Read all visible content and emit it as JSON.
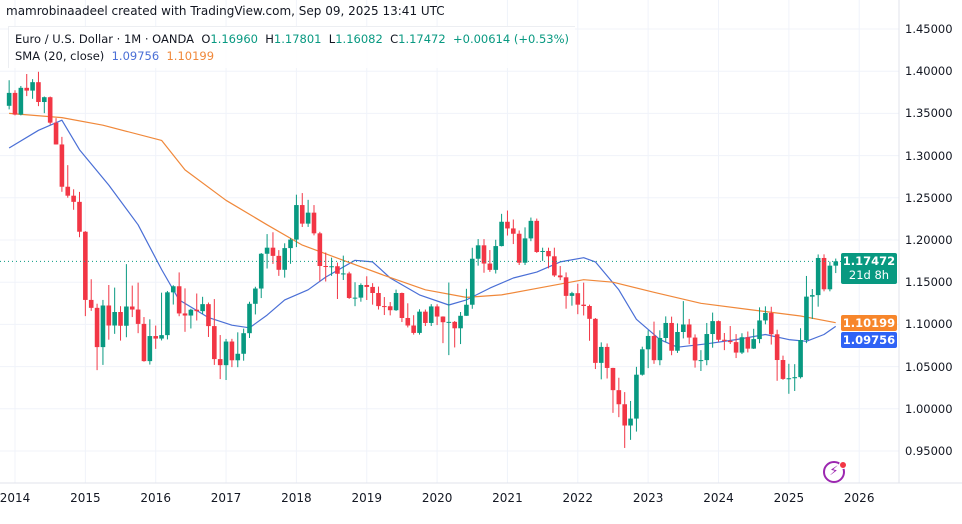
{
  "attribution": "mamrobinaadeel created with TradingView.com, Sep 09, 2025 13:41 UTC",
  "legend": {
    "symbol": "Euro / U.S. Dollar · 1M · OANDA",
    "o_label": "O",
    "o_value": "1.16960",
    "h_label": "H",
    "h_value": "1.17801",
    "l_label": "L",
    "l_value": "1.16082",
    "c_label": "C",
    "c_value": "1.17472",
    "change": "+0.00614 (+0.53%)",
    "sma_label": "SMA (20, close)",
    "sma_value_1": "1.09756",
    "sma_value_2": "1.10199"
  },
  "price_labels": {
    "current": "1.17472",
    "countdown": "21d 8h",
    "sma_orange": "1.10199",
    "sma_blue": "1.09756"
  },
  "colors": {
    "up": "#089981",
    "down": "#f23645",
    "sma_blue": "#4a6fd6",
    "sma_orange": "#f0883a",
    "current_label": "#089981",
    "orange_label": "#f7862b",
    "blue_label": "#2f62f5",
    "grid": "#f0f3fa"
  },
  "icons": {
    "bottom_right": "lightning-bolt-icon"
  },
  "chart_data": {
    "type": "candlestick",
    "interval": "1M",
    "ylim": [
      0.92,
      1.46
    ],
    "grid": true,
    "y_ticks": [
      "1.45000",
      "1.40000",
      "1.35000",
      "1.30000",
      "1.25000",
      "1.20000",
      "1.15000",
      "1.10000",
      "1.05000",
      "1.00000",
      "0.95000"
    ],
    "x_ticks": [
      "2014",
      "2015",
      "2016",
      "2017",
      "2018",
      "2019",
      "2020",
      "2021",
      "2022",
      "2023",
      "2024",
      "2025",
      "2026"
    ],
    "current_price": 1.17472,
    "candles": [
      [
        "2013-12",
        1.359,
        1.3893,
        1.3548,
        1.3743
      ],
      [
        "2014-01",
        1.3743,
        1.3775,
        1.3477,
        1.3486
      ],
      [
        "2014-02",
        1.3486,
        1.3825,
        1.3476,
        1.3803
      ],
      [
        "2014-03",
        1.3803,
        1.3967,
        1.3705,
        1.377
      ],
      [
        "2014-04",
        1.377,
        1.3906,
        1.3673,
        1.387
      ],
      [
        "2014-05",
        1.387,
        1.3993,
        1.3586,
        1.3635
      ],
      [
        "2014-06",
        1.3635,
        1.37,
        1.3503,
        1.3692
      ],
      [
        "2014-07",
        1.3692,
        1.37,
        1.3368,
        1.339
      ],
      [
        "2014-08",
        1.339,
        1.3444,
        1.3131,
        1.3132
      ],
      [
        "2014-09",
        1.3132,
        1.3222,
        1.2571,
        1.2631
      ],
      [
        "2014-10",
        1.2631,
        1.2887,
        1.2501,
        1.2525
      ],
      [
        "2014-11",
        1.2525,
        1.2601,
        1.2358,
        1.2452
      ],
      [
        "2014-12",
        1.2452,
        1.257,
        1.2033,
        1.2098
      ],
      [
        "2015-01",
        1.2098,
        1.2105,
        1.1098,
        1.129
      ],
      [
        "2015-02",
        1.129,
        1.1535,
        1.116,
        1.1196
      ],
      [
        "2015-03",
        1.1196,
        1.1245,
        1.0458,
        1.0731
      ],
      [
        "2015-04",
        1.0731,
        1.129,
        1.052,
        1.1224
      ],
      [
        "2015-05",
        1.1224,
        1.1467,
        1.0819,
        1.0987
      ],
      [
        "2015-06",
        1.0987,
        1.1436,
        1.0888,
        1.1147
      ],
      [
        "2015-07",
        1.1147,
        1.1216,
        1.0808,
        1.0984
      ],
      [
        "2015-08",
        1.0984,
        1.1714,
        1.0848,
        1.1212
      ],
      [
        "2015-09",
        1.1212,
        1.146,
        1.1087,
        1.1176
      ],
      [
        "2015-10",
        1.1176,
        1.1495,
        1.0896,
        1.1006
      ],
      [
        "2015-11",
        1.1006,
        1.1087,
        1.0558,
        1.0565
      ],
      [
        "2015-12",
        1.0565,
        1.106,
        1.0524,
        1.0862
      ],
      [
        "2016-01",
        1.0862,
        1.0986,
        1.071,
        1.0832
      ],
      [
        "2016-02",
        1.0832,
        1.1376,
        1.081,
        1.0873
      ],
      [
        "2016-03",
        1.0873,
        1.1396,
        1.0822,
        1.138
      ],
      [
        "2016-04",
        1.138,
        1.1464,
        1.1235,
        1.1452
      ],
      [
        "2016-05",
        1.1452,
        1.1616,
        1.1097,
        1.113
      ],
      [
        "2016-06",
        1.113,
        1.1427,
        1.0912,
        1.1105
      ],
      [
        "2016-07",
        1.1105,
        1.1185,
        1.0952,
        1.1174
      ],
      [
        "2016-08",
        1.1174,
        1.1366,
        1.1046,
        1.1157
      ],
      [
        "2016-09",
        1.1157,
        1.1327,
        1.1123,
        1.124
      ],
      [
        "2016-10",
        1.124,
        1.1259,
        1.0851,
        1.098
      ],
      [
        "2016-11",
        1.098,
        1.13,
        1.052,
        1.0589
      ],
      [
        "2016-12",
        1.0589,
        1.0874,
        1.0352,
        1.0517
      ],
      [
        "2017-01",
        1.0517,
        1.0828,
        1.0341,
        1.0797
      ],
      [
        "2017-02",
        1.0797,
        1.0829,
        1.0494,
        1.0575
      ],
      [
        "2017-03",
        1.0575,
        1.0906,
        1.0493,
        1.0652
      ],
      [
        "2017-04",
        1.0652,
        1.095,
        1.057,
        1.0896
      ],
      [
        "2017-05",
        1.0896,
        1.1268,
        1.0839,
        1.1244
      ],
      [
        "2017-06",
        1.1244,
        1.1446,
        1.1118,
        1.1425
      ],
      [
        "2017-07",
        1.1425,
        1.1846,
        1.1312,
        1.1837
      ],
      [
        "2017-08",
        1.1837,
        1.207,
        1.1662,
        1.1909
      ],
      [
        "2017-09",
        1.1909,
        1.2092,
        1.1717,
        1.1812
      ],
      [
        "2017-10",
        1.1812,
        1.188,
        1.1575,
        1.1647
      ],
      [
        "2017-11",
        1.1647,
        1.1961,
        1.1554,
        1.1904
      ],
      [
        "2017-12",
        1.1904,
        1.2023,
        1.1718,
        1.2005
      ],
      [
        "2018-01",
        1.2005,
        1.2537,
        1.1916,
        1.2414
      ],
      [
        "2018-02",
        1.2414,
        1.2556,
        1.2154,
        1.2194
      ],
      [
        "2018-03",
        1.2194,
        1.2476,
        1.2155,
        1.2324
      ],
      [
        "2018-04",
        1.2324,
        1.2414,
        1.2055,
        1.2079
      ],
      [
        "2018-05",
        1.2079,
        1.2097,
        1.151,
        1.1692
      ],
      [
        "2018-06",
        1.1692,
        1.1852,
        1.1508,
        1.1684
      ],
      [
        "2018-07",
        1.1684,
        1.1791,
        1.1575,
        1.1689
      ],
      [
        "2018-08",
        1.1689,
        1.1733,
        1.1301,
        1.16
      ],
      [
        "2018-09",
        1.16,
        1.1815,
        1.1526,
        1.1604
      ],
      [
        "2018-10",
        1.1604,
        1.1624,
        1.1302,
        1.1313
      ],
      [
        "2018-11",
        1.1313,
        1.15,
        1.1216,
        1.1317
      ],
      [
        "2018-12",
        1.1317,
        1.1486,
        1.1269,
        1.1467
      ],
      [
        "2019-01",
        1.1467,
        1.157,
        1.1289,
        1.1444
      ],
      [
        "2019-02",
        1.1444,
        1.1489,
        1.1234,
        1.1372
      ],
      [
        "2019-03",
        1.1372,
        1.1448,
        1.1176,
        1.1217
      ],
      [
        "2019-04",
        1.1217,
        1.1324,
        1.1111,
        1.1215
      ],
      [
        "2019-05",
        1.1215,
        1.1265,
        1.1107,
        1.1168
      ],
      [
        "2019-06",
        1.1168,
        1.1412,
        1.116,
        1.1372
      ],
      [
        "2019-07",
        1.1372,
        1.1377,
        1.1028,
        1.1076
      ],
      [
        "2019-08",
        1.1076,
        1.125,
        1.0964,
        1.0987
      ],
      [
        "2019-09",
        1.0987,
        1.1109,
        1.0879,
        1.0899
      ],
      [
        "2019-10",
        1.0899,
        1.1179,
        1.0879,
        1.1151
      ],
      [
        "2019-11",
        1.1151,
        1.1176,
        1.0981,
        1.1017
      ],
      [
        "2019-12",
        1.1017,
        1.124,
        1.0981,
        1.1213
      ],
      [
        "2020-01",
        1.1213,
        1.1239,
        1.0992,
        1.1093
      ],
      [
        "2020-02",
        1.1093,
        1.1096,
        1.0778,
        1.1026
      ],
      [
        "2020-03",
        1.1026,
        1.1496,
        1.0636,
        1.103
      ],
      [
        "2020-04",
        1.103,
        1.104,
        1.0727,
        1.0954
      ],
      [
        "2020-05",
        1.0954,
        1.1147,
        1.0767,
        1.1102
      ],
      [
        "2020-06",
        1.1102,
        1.1422,
        1.1101,
        1.1233
      ],
      [
        "2020-07",
        1.1233,
        1.1908,
        1.1185,
        1.1778
      ],
      [
        "2020-08",
        1.1778,
        1.2011,
        1.1696,
        1.1937
      ],
      [
        "2020-09",
        1.1937,
        1.2011,
        1.1612,
        1.1721
      ],
      [
        "2020-10",
        1.1721,
        1.1881,
        1.1622,
        1.1646
      ],
      [
        "2020-11",
        1.1646,
        1.2003,
        1.1603,
        1.1928
      ],
      [
        "2020-12",
        1.1928,
        1.231,
        1.1924,
        1.2216
      ],
      [
        "2021-01",
        1.2216,
        1.2349,
        1.2053,
        1.2137
      ],
      [
        "2021-02",
        1.2137,
        1.2243,
        1.1952,
        1.2074
      ],
      [
        "2021-03",
        1.2074,
        1.2113,
        1.1704,
        1.1731
      ],
      [
        "2021-04",
        1.1731,
        1.215,
        1.1704,
        1.2019
      ],
      [
        "2021-05",
        1.2019,
        1.2266,
        1.1986,
        1.2227
      ],
      [
        "2021-06",
        1.2227,
        1.2254,
        1.1847,
        1.1858
      ],
      [
        "2021-07",
        1.1858,
        1.1909,
        1.1752,
        1.187
      ],
      [
        "2021-08",
        1.187,
        1.1909,
        1.1664,
        1.1807
      ],
      [
        "2021-09",
        1.1807,
        1.1909,
        1.1563,
        1.158
      ],
      [
        "2021-10",
        1.158,
        1.1692,
        1.1524,
        1.1558
      ],
      [
        "2021-11",
        1.1558,
        1.1616,
        1.1186,
        1.1338
      ],
      [
        "2021-12",
        1.1338,
        1.1386,
        1.1222,
        1.137
      ],
      [
        "2022-01",
        1.137,
        1.1482,
        1.1121,
        1.1234
      ],
      [
        "2022-02",
        1.1234,
        1.1495,
        1.1106,
        1.1218
      ],
      [
        "2022-03",
        1.1218,
        1.1234,
        1.0806,
        1.1066
      ],
      [
        "2022-04",
        1.1066,
        1.1076,
        1.0471,
        1.0544
      ],
      [
        "2022-05",
        1.0544,
        1.0787,
        1.0349,
        1.0733
      ],
      [
        "2022-06",
        1.0733,
        1.0774,
        1.0359,
        1.0484
      ],
      [
        "2022-07",
        1.0484,
        1.0486,
        0.9952,
        1.0221
      ],
      [
        "2022-08",
        1.0221,
        1.0368,
        0.9901,
        1.0054
      ],
      [
        "2022-09",
        1.0054,
        1.0198,
        0.9536,
        0.9802
      ],
      [
        "2022-10",
        0.9802,
        1.0093,
        0.9632,
        0.9884
      ],
      [
        "2022-11",
        0.9884,
        1.0497,
        0.973,
        1.0404
      ],
      [
        "2022-12",
        1.0404,
        1.0736,
        1.0393,
        1.0705
      ],
      [
        "2023-01",
        1.0705,
        1.093,
        1.0482,
        1.0863
      ],
      [
        "2023-02",
        1.0863,
        1.1033,
        1.0533,
        1.0576
      ],
      [
        "2023-03",
        1.0576,
        1.093,
        1.0516,
        1.0839
      ],
      [
        "2023-04",
        1.0839,
        1.1095,
        1.0788,
        1.1017
      ],
      [
        "2023-05",
        1.1017,
        1.1092,
        1.0635,
        1.0688
      ],
      [
        "2023-06",
        1.0688,
        1.1012,
        1.0662,
        1.091
      ],
      [
        "2023-07",
        1.091,
        1.1276,
        1.0834,
        1.0999
      ],
      [
        "2023-08",
        1.0999,
        1.1065,
        1.0766,
        1.0844
      ],
      [
        "2023-09",
        1.0844,
        1.0882,
        1.0488,
        1.0573
      ],
      [
        "2023-10",
        1.0573,
        1.0695,
        1.0448,
        1.0577
      ],
      [
        "2023-11",
        1.0577,
        1.1017,
        1.0516,
        1.0886
      ],
      [
        "2023-12",
        1.0886,
        1.114,
        1.0724,
        1.1039
      ],
      [
        "2024-01",
        1.1039,
        1.1046,
        1.0795,
        1.0818
      ],
      [
        "2024-02",
        1.0818,
        1.0898,
        1.0695,
        1.0805
      ],
      [
        "2024-03",
        1.0805,
        1.0981,
        1.0768,
        1.079
      ],
      [
        "2024-04",
        1.079,
        1.0885,
        1.0601,
        1.0666
      ],
      [
        "2024-05",
        1.0666,
        1.0895,
        1.0649,
        1.0848
      ],
      [
        "2024-06",
        1.0848,
        1.0916,
        1.0668,
        1.0713
      ],
      [
        "2024-07",
        1.0713,
        1.0948,
        1.0709,
        1.0826
      ],
      [
        "2024-08",
        1.0826,
        1.1202,
        1.0777,
        1.1047
      ],
      [
        "2024-09",
        1.1047,
        1.1214,
        1.1001,
        1.1135
      ],
      [
        "2024-10",
        1.1135,
        1.1209,
        1.0761,
        1.0883
      ],
      [
        "2024-11",
        1.0883,
        1.0937,
        1.0332,
        1.0578
      ],
      [
        "2024-12",
        1.0578,
        1.063,
        1.0343,
        1.0354
      ],
      [
        "2025-01",
        1.0354,
        1.0533,
        1.0178,
        1.0362
      ],
      [
        "2025-02",
        1.0362,
        1.0529,
        1.0211,
        1.0375
      ],
      [
        "2025-03",
        1.0375,
        1.0955,
        1.0359,
        1.0815
      ],
      [
        "2025-04",
        1.0815,
        1.1574,
        1.0778,
        1.1329
      ],
      [
        "2025-05",
        1.1329,
        1.1419,
        1.1065,
        1.1347
      ],
      [
        "2025-06",
        1.1347,
        1.1829,
        1.121,
        1.1787
      ],
      [
        "2025-07",
        1.1787,
        1.183,
        1.1392,
        1.1416
      ],
      [
        "2025-08",
        1.1416,
        1.1743,
        1.1392,
        1.1696
      ],
      [
        "2025-09",
        1.1696,
        1.17801,
        1.16082,
        1.17472
      ]
    ],
    "series": [
      {
        "name": "SMA (20, close)",
        "color": "#4a6fd6",
        "points": [
          [
            "2013-12",
            1.309
          ],
          [
            "2014-05",
            1.33
          ],
          [
            "2014-09",
            1.342
          ],
          [
            "2014-12",
            1.307
          ],
          [
            "2015-05",
            1.265
          ],
          [
            "2015-10",
            1.218
          ],
          [
            "2016-02",
            1.165
          ],
          [
            "2016-05",
            1.129
          ],
          [
            "2016-10",
            1.108
          ],
          [
            "2017-02",
            1.099
          ],
          [
            "2017-05",
            1.096
          ],
          [
            "2017-08",
            1.111
          ],
          [
            "2017-11",
            1.129
          ],
          [
            "2018-03",
            1.141
          ],
          [
            "2018-06",
            1.156
          ],
          [
            "2018-11",
            1.176
          ],
          [
            "2019-02",
            1.174
          ],
          [
            "2019-05",
            1.155
          ],
          [
            "2019-10",
            1.135
          ],
          [
            "2020-03",
            1.123
          ],
          [
            "2020-06",
            1.129
          ],
          [
            "2020-10",
            1.143
          ],
          [
            "2021-02",
            1.155
          ],
          [
            "2021-06",
            1.162
          ],
          [
            "2021-10",
            1.174
          ],
          [
            "2022-02",
            1.179
          ],
          [
            "2022-04",
            1.174
          ],
          [
            "2022-08",
            1.141
          ],
          [
            "2022-11",
            1.106
          ],
          [
            "2023-03",
            1.082
          ],
          [
            "2023-06",
            1.073
          ],
          [
            "2023-11",
            1.077
          ],
          [
            "2024-04",
            1.082
          ],
          [
            "2024-09",
            1.088
          ],
          [
            "2025-01",
            1.082
          ],
          [
            "2025-04",
            1.08
          ],
          [
            "2025-07",
            1.088
          ],
          [
            "2025-09",
            1.0976
          ]
        ]
      },
      {
        "color": "#f0883a",
        "points": [
          [
            "2013-12",
            1.35
          ],
          [
            "2014-09",
            1.345
          ],
          [
            "2015-04",
            1.336
          ],
          [
            "2016-02",
            1.318
          ],
          [
            "2016-06",
            1.283
          ],
          [
            "2017-01",
            1.247
          ],
          [
            "2017-08",
            1.218
          ],
          [
            "2018-02",
            1.194
          ],
          [
            "2018-09",
            1.176
          ],
          [
            "2019-04",
            1.158
          ],
          [
            "2019-11",
            1.141
          ],
          [
            "2020-06",
            1.132
          ],
          [
            "2020-12",
            1.135
          ],
          [
            "2021-07",
            1.144
          ],
          [
            "2022-02",
            1.153
          ],
          [
            "2022-07",
            1.15
          ],
          [
            "2023-02",
            1.138
          ],
          [
            "2023-10",
            1.125
          ],
          [
            "2024-07",
            1.117
          ],
          [
            "2025-03",
            1.11
          ],
          [
            "2025-09",
            1.102
          ]
        ]
      }
    ]
  }
}
